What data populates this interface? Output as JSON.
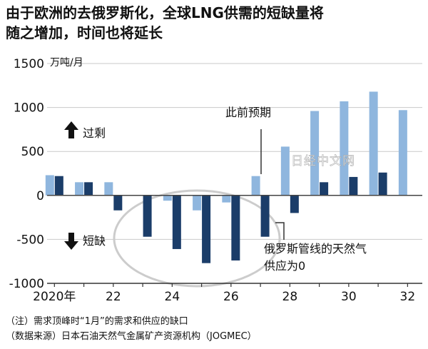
{
  "title": {
    "line1": "由于欧洲的去俄罗斯化，全球LNG供需的短缺量将",
    "line2": "随之增加，时间也将延长"
  },
  "chart_data": {
    "type": "bar",
    "unit_label": "万吨/月",
    "yticks": [
      1500,
      1000,
      500,
      0,
      -500,
      -1000
    ],
    "ylim": [
      -1000,
      1500
    ],
    "xlim": [
      2019.75,
      2032.5
    ],
    "x_tick_labels": [
      {
        "x": 2020,
        "label": "2020年"
      },
      {
        "x": 2022,
        "label": "22"
      },
      {
        "x": 2024,
        "label": "24"
      },
      {
        "x": 2026,
        "label": "26"
      },
      {
        "x": 2028,
        "label": "28"
      },
      {
        "x": 2030,
        "label": "30"
      },
      {
        "x": 2032,
        "label": "32"
      }
    ],
    "years": [
      2020,
      2021,
      2022,
      2023,
      2024,
      2025,
      2026,
      2027,
      2028,
      2029,
      2030,
      2031,
      2032
    ],
    "series": [
      {
        "values": [
          230,
          150,
          150,
          0,
          -60,
          -170,
          -80,
          220,
          555,
          960,
          1070,
          1180,
          970
        ],
        "color": "#8fb6de"
      },
      {
        "values": [
          220,
          150,
          -170,
          -470,
          -610,
          -770,
          -740,
          -470,
          -200,
          150,
          210,
          260,
          null
        ],
        "color": "#1b3d69"
      }
    ],
    "annotations": {
      "previous_forecast": "此前预期",
      "russian_pipeline_1": "俄罗斯管线的天然气",
      "russian_pipeline_2": "供应为0",
      "surplus": "过剩",
      "shortage": "短缺",
      "watermark": "日经中文网"
    }
  },
  "footer": {
    "note": "（注）需求顶峰时“1月”的需求和供应的缺口",
    "source": "（数据来源）日本石油天然气金属矿产资源机构（JOGMEC）"
  }
}
